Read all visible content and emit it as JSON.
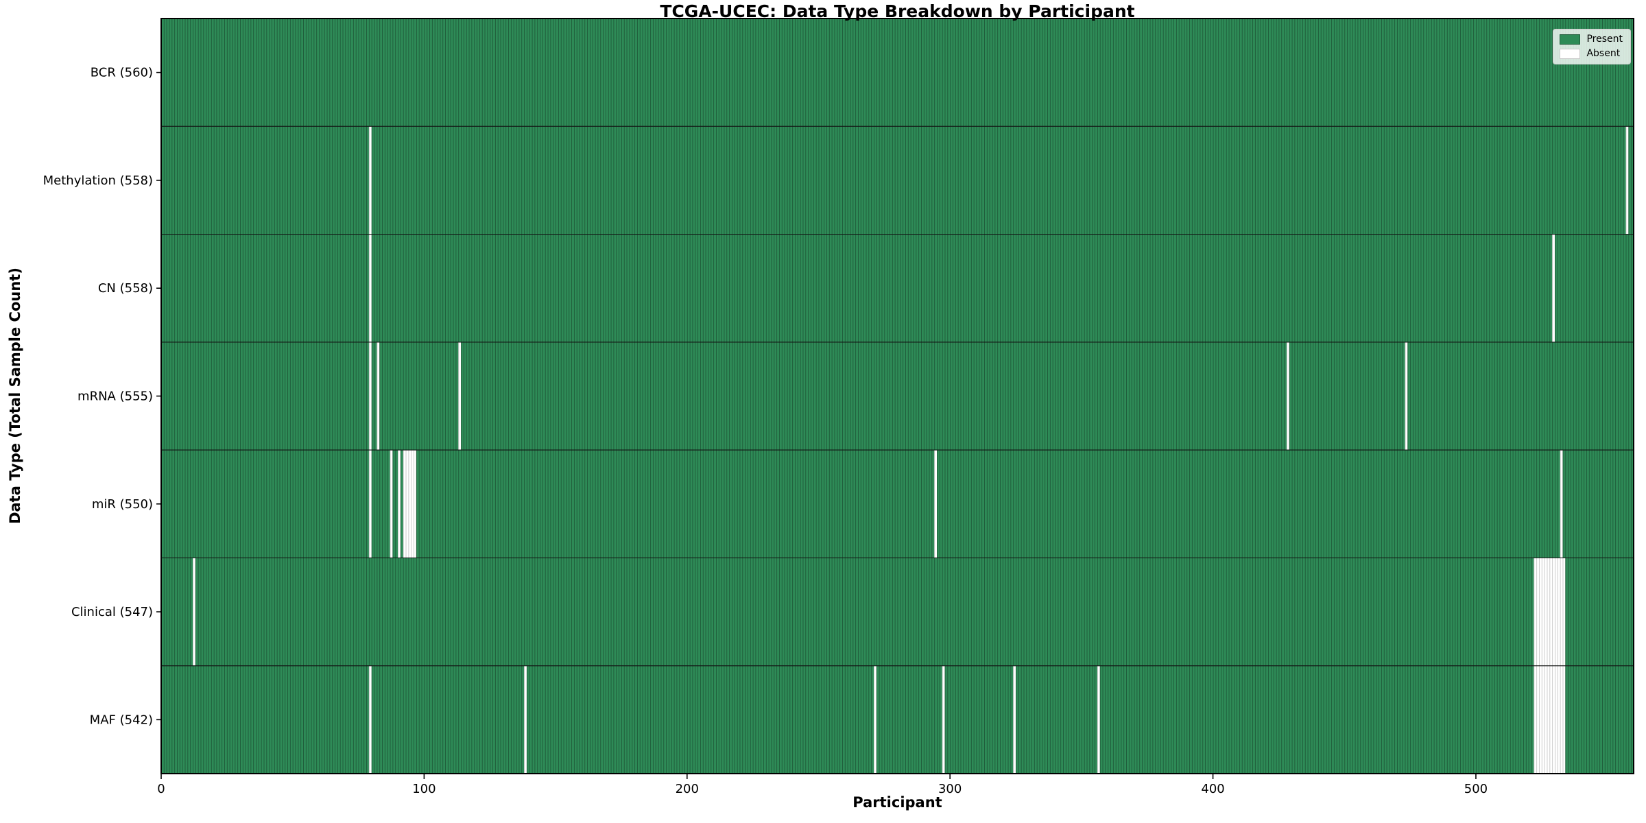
{
  "figure": {
    "title": "TCGA-UCEC: Data Type Breakdown by Participant",
    "xlabel": "Participant",
    "ylabel": "Data Type (Total Sample Count)"
  },
  "legend": {
    "position": "upper right",
    "items": [
      {
        "label": "Present",
        "color": "#2e8b57"
      },
      {
        "label": "Absent",
        "color": "#ffffff"
      }
    ]
  },
  "chart_data": {
    "type": "heatmap",
    "title": "TCGA-UCEC: Data Type Breakdown by Participant",
    "xlabel": "Participant",
    "ylabel": "Data Type (Total Sample Count)",
    "n_participants": 560,
    "x_range": [
      0,
      560
    ],
    "x_ticks": [
      0,
      100,
      200,
      300,
      400,
      500
    ],
    "grid": "off",
    "legend_position": "upper right",
    "rows": [
      {
        "name": "BCR",
        "label": "BCR (560)",
        "count": 560,
        "absent_participants": []
      },
      {
        "name": "Methylation",
        "label": "Methylation (558)",
        "count": 558,
        "absent_participants": [
          79,
          557
        ]
      },
      {
        "name": "CN",
        "label": "CN (558)",
        "count": 558,
        "absent_participants": [
          79,
          529
        ]
      },
      {
        "name": "mRNA",
        "label": "mRNA (555)",
        "count": 555,
        "absent_participants": [
          79,
          82,
          113,
          428,
          473
        ]
      },
      {
        "name": "miR",
        "label": "miR (550)",
        "count": 550,
        "absent_participants": [
          79,
          87,
          90,
          92,
          93,
          94,
          95,
          96,
          294,
          532
        ]
      },
      {
        "name": "Clinical",
        "label": "Clinical (547)",
        "count": 547,
        "absent_participants": [
          12,
          522,
          523,
          524,
          525,
          526,
          527,
          528,
          529,
          530,
          531,
          532,
          533
        ]
      },
      {
        "name": "MAF",
        "label": "MAF (542)",
        "count": 542,
        "absent_participants": [
          79,
          138,
          271,
          297,
          324,
          356,
          522,
          523,
          524,
          525,
          526,
          527,
          528,
          529,
          530,
          531,
          532,
          533
        ]
      }
    ],
    "colors": {
      "present": "#2e8b57",
      "present_edge": "#1f5c3a",
      "absent": "#ffffff",
      "absent_edge": "#c9c9c9",
      "row_separator": "#111111",
      "axes_border": "#000000",
      "tick": "#000000",
      "text": "#000000"
    }
  }
}
